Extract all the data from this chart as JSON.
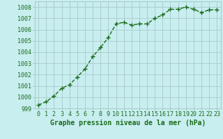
{
  "x": [
    0,
    1,
    2,
    3,
    4,
    5,
    6,
    7,
    8,
    9,
    10,
    11,
    12,
    13,
    14,
    15,
    16,
    17,
    18,
    19,
    20,
    21,
    22,
    23
  ],
  "y": [
    999.3,
    999.6,
    1000.1,
    1000.8,
    1001.1,
    1001.8,
    1002.5,
    1003.6,
    1004.4,
    1005.3,
    1006.5,
    1006.65,
    1006.4,
    1006.5,
    1006.5,
    1007.0,
    1007.3,
    1007.8,
    1007.8,
    1008.0,
    1007.8,
    1007.5,
    1007.75,
    1007.75
  ],
  "line_color": "#1a6b1a",
  "marker": "+",
  "marker_size": 4,
  "marker_linewidth": 1.0,
  "background_color": "#c8eef0",
  "grid_color": "#a8c8c8",
  "xlabel": "Graphe pression niveau de la mer (hPa)",
  "xlabel_fontsize": 7,
  "tick_fontsize": 6,
  "ylim": [
    999,
    1008.5
  ],
  "xlim": [
    -0.5,
    23.5
  ],
  "yticks": [
    999,
    1000,
    1001,
    1002,
    1003,
    1004,
    1005,
    1006,
    1007,
    1008
  ],
  "xticks": [
    0,
    1,
    2,
    3,
    4,
    5,
    6,
    7,
    8,
    9,
    10,
    11,
    12,
    13,
    14,
    15,
    16,
    17,
    18,
    19,
    20,
    21,
    22,
    23
  ],
  "linewidth": 1.0,
  "linestyle": "--"
}
